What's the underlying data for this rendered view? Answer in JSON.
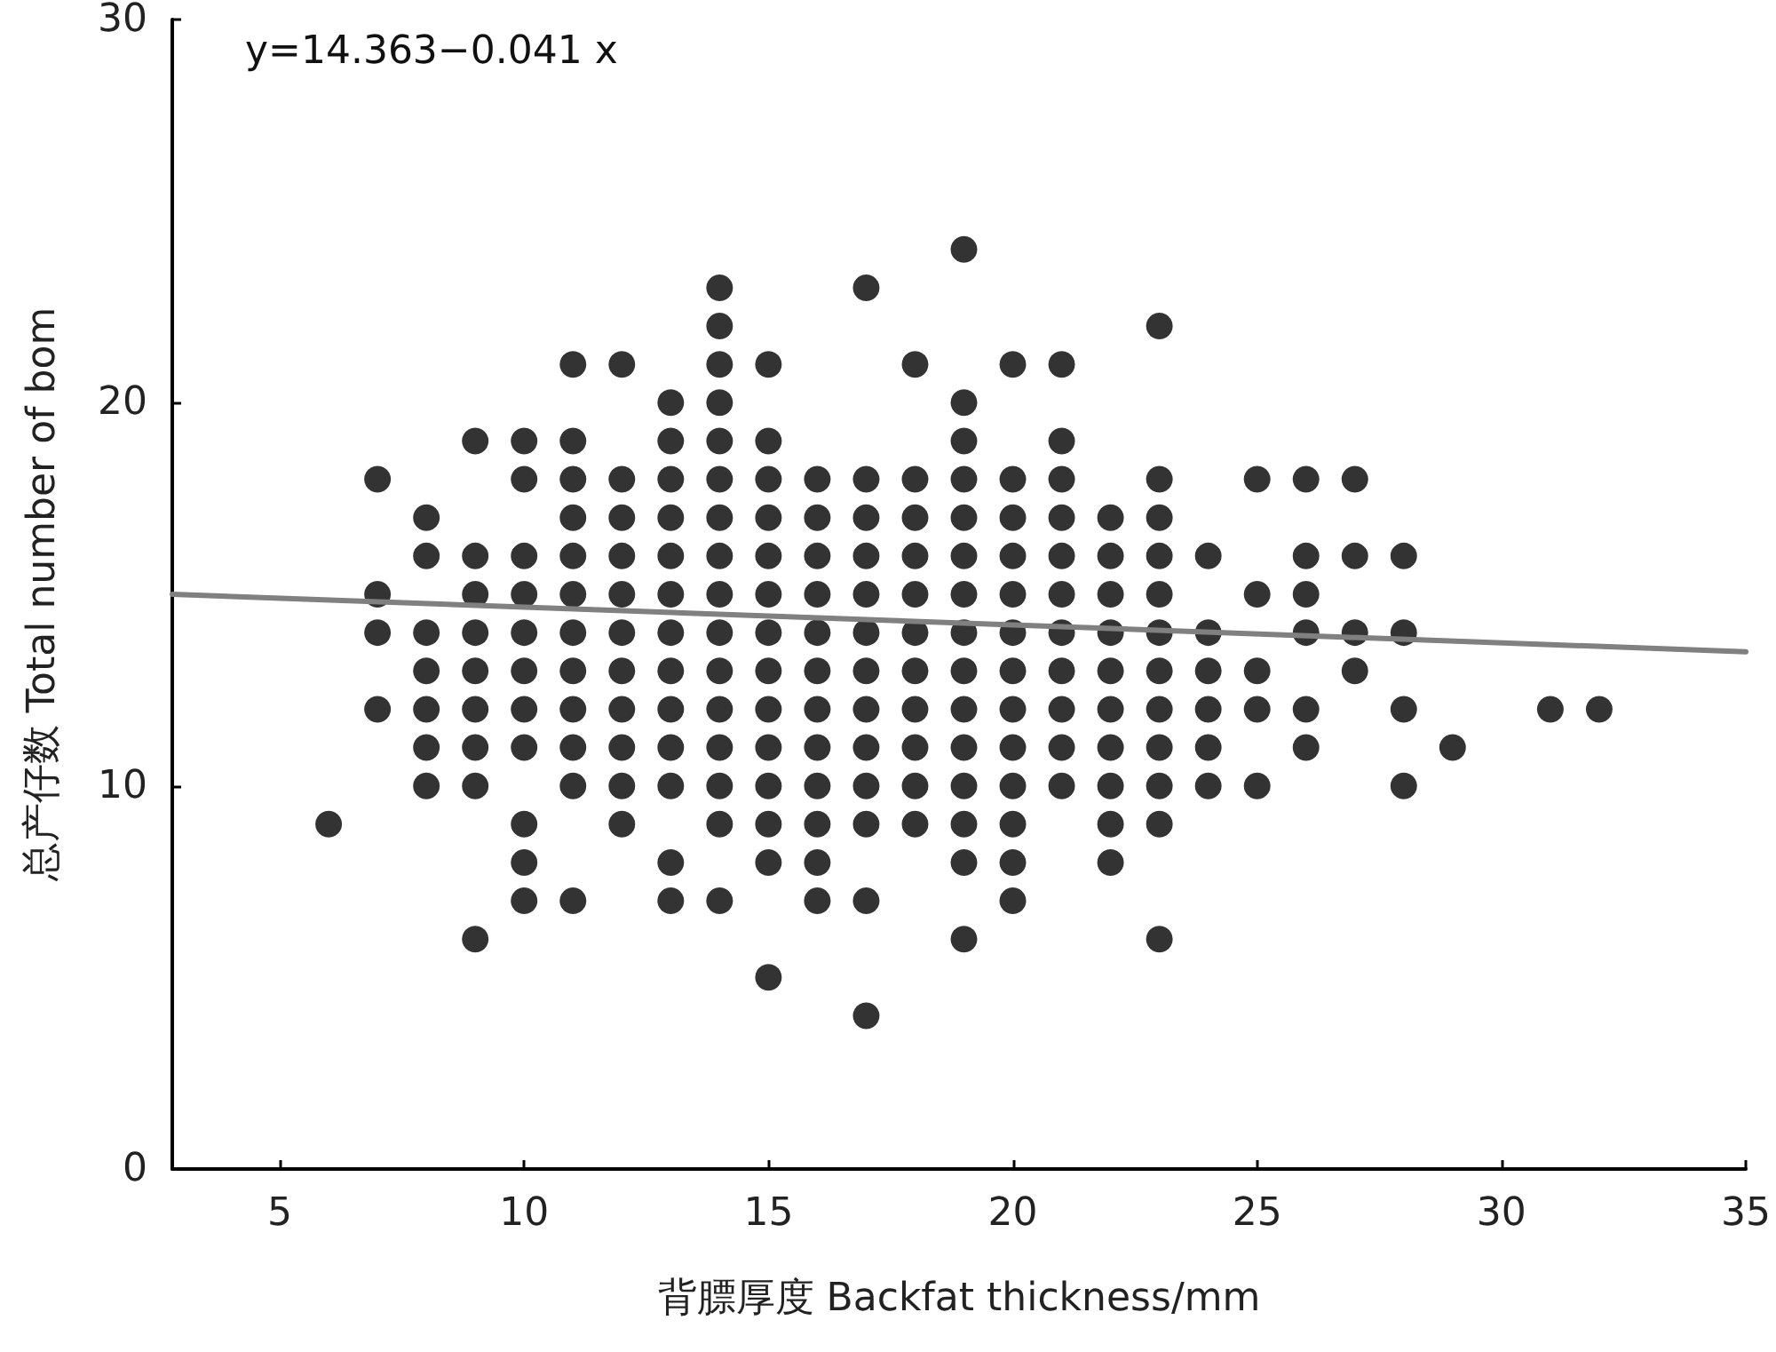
{
  "chart_data": {
    "type": "scatter",
    "xlabel": "背膘厚度 Backfat thickness/mm",
    "ylabel": "总产仔数 Total number of bom",
    "annotations": [
      "y=14.363−0.041 x"
    ],
    "xlim": [
      2.8,
      35
    ],
    "xticks": [
      5,
      10,
      15,
      20,
      25,
      30,
      35
    ],
    "ylim": [
      0,
      30
    ],
    "yticks": [
      0,
      10,
      20,
      30
    ],
    "grid": false,
    "marker": "circle",
    "series": [
      {
        "color": "#000000",
        "x": [
          6,
          7,
          7,
          7,
          7,
          8,
          8,
          8,
          8,
          8,
          8,
          8,
          9,
          9,
          9,
          9,
          9,
          9,
          9,
          9,
          9,
          10,
          10,
          10,
          10,
          10,
          10,
          10,
          10,
          10,
          10,
          10,
          11,
          11,
          11,
          11,
          11,
          11,
          11,
          11,
          11,
          11,
          11,
          11,
          12,
          12,
          12,
          12,
          12,
          12,
          12,
          12,
          12,
          12,
          12,
          13,
          13,
          13,
          13,
          13,
          13,
          13,
          13,
          13,
          13,
          13,
          13,
          13,
          14,
          14,
          14,
          14,
          14,
          14,
          14,
          14,
          14,
          14,
          14,
          14,
          14,
          14,
          14,
          14,
          15,
          15,
          15,
          15,
          15,
          15,
          15,
          15,
          15,
          15,
          15,
          15,
          15,
          15,
          16,
          16,
          16,
          16,
          16,
          16,
          16,
          16,
          16,
          16,
          16,
          16,
          17,
          17,
          17,
          17,
          17,
          17,
          17,
          17,
          17,
          17,
          17,
          17,
          17,
          18,
          18,
          18,
          18,
          18,
          18,
          18,
          18,
          18,
          18,
          18,
          19,
          19,
          19,
          19,
          19,
          19,
          19,
          19,
          19,
          19,
          19,
          19,
          19,
          19,
          19,
          20,
          20,
          20,
          20,
          20,
          20,
          20,
          20,
          20,
          20,
          20,
          20,
          20,
          21,
          21,
          21,
          21,
          21,
          21,
          21,
          21,
          21,
          21,
          21,
          22,
          22,
          22,
          22,
          22,
          22,
          22,
          22,
          22,
          22,
          23,
          23,
          23,
          23,
          23,
          23,
          23,
          23,
          23,
          23,
          23,
          23,
          24,
          24,
          24,
          24,
          24,
          24,
          25,
          25,
          25,
          25,
          25,
          26,
          26,
          26,
          26,
          26,
          26,
          27,
          27,
          27,
          27,
          28,
          28,
          28,
          28,
          29,
          31,
          32
        ],
        "values": [
          9,
          18,
          15,
          14,
          12,
          17,
          16,
          14,
          13,
          12,
          11,
          10,
          19,
          16,
          15,
          14,
          13,
          12,
          11,
          10,
          6,
          19,
          18,
          16,
          15,
          14,
          13,
          12,
          11,
          9,
          8,
          7,
          21,
          19,
          18,
          17,
          16,
          15,
          14,
          13,
          12,
          11,
          10,
          7,
          21,
          18,
          17,
          16,
          15,
          14,
          13,
          12,
          11,
          10,
          9,
          20,
          19,
          18,
          17,
          16,
          15,
          14,
          13,
          12,
          11,
          10,
          8,
          7,
          23,
          22,
          21,
          20,
          19,
          18,
          17,
          16,
          15,
          14,
          13,
          12,
          11,
          10,
          9,
          7,
          21,
          19,
          18,
          17,
          16,
          15,
          14,
          13,
          12,
          11,
          10,
          9,
          8,
          5,
          18,
          17,
          16,
          15,
          14,
          13,
          12,
          11,
          10,
          9,
          8,
          7,
          23,
          18,
          17,
          16,
          15,
          14,
          13,
          12,
          11,
          10,
          9,
          7,
          4,
          21,
          18,
          17,
          16,
          15,
          14,
          13,
          12,
          11,
          10,
          9,
          24,
          20,
          19,
          18,
          17,
          16,
          15,
          14,
          13,
          12,
          11,
          10,
          9,
          8,
          6,
          21,
          18,
          17,
          16,
          15,
          14,
          13,
          12,
          11,
          10,
          9,
          8,
          7,
          21,
          19,
          18,
          17,
          16,
          15,
          14,
          13,
          12,
          11,
          10,
          17,
          16,
          15,
          14,
          13,
          12,
          11,
          10,
          9,
          8,
          22,
          18,
          17,
          16,
          15,
          14,
          13,
          12,
          11,
          10,
          9,
          6,
          16,
          14,
          13,
          12,
          11,
          10,
          18,
          15,
          13,
          12,
          10,
          18,
          16,
          15,
          14,
          12,
          11,
          18,
          16,
          14,
          13,
          16,
          14,
          12,
          10,
          11,
          12,
          12
        ]
      },
      {
        "type": "line",
        "marker": "none",
        "color": "#808080",
        "x": [
          2.8,
          35
        ],
        "values": [
          15,
          13.5
        ]
      }
    ]
  }
}
